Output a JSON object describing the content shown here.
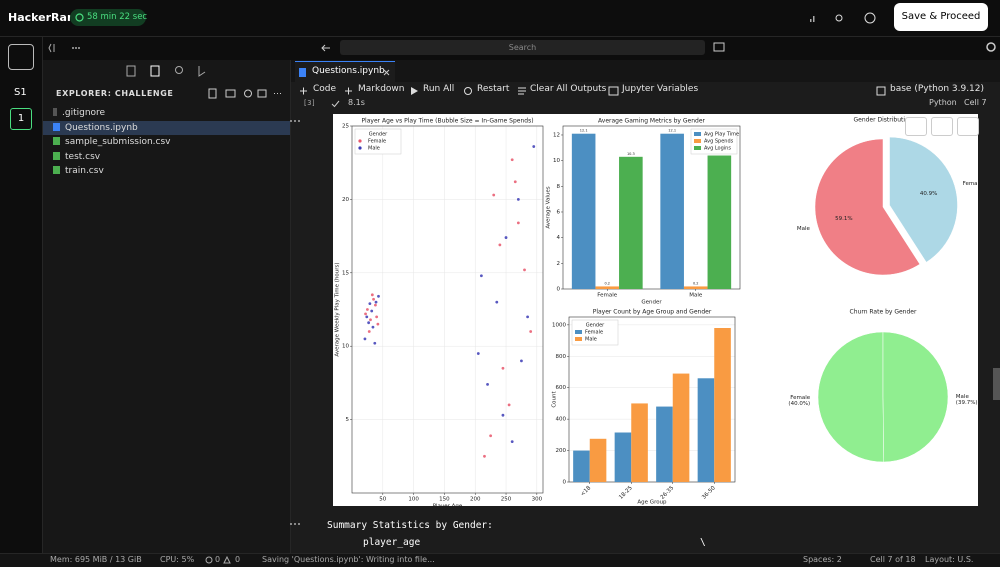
{
  "header": {
    "brand": "HackerRank",
    "timer": "58 min 22 sec",
    "save_button": "Save & Proceed"
  },
  "rail": {
    "section": "S1",
    "question": "1"
  },
  "search": "Search",
  "explorer": {
    "title": "EXPLORER: CHALLENGE",
    "files": [
      ".gitignore",
      "Questions.ipynb",
      "sample_submission.csv",
      "test.csv",
      "train.csv"
    ]
  },
  "tab": "Questions.ipynb",
  "toolbar": {
    "code": "Code",
    "markdown": "Markdown",
    "run_all": "Run All",
    "restart": "Restart",
    "clear": "Clear All Outputs",
    "variables": "Jupyter Variables",
    "kernel": "base (Python 3.9.12)"
  },
  "cell": {
    "execution_count": "[3]",
    "duration": "8.1s",
    "language": "Python",
    "position": "Cell 7"
  },
  "chart_data": [
    {
      "type": "scatter",
      "title": "Player Age vs Play Time (Bubble Size = In-Game Spends)",
      "xlabel": "Player Age",
      "ylabel": "Average Weekly Play Time (hours)",
      "xlim": [
        0,
        310
      ],
      "xticks": [
        50,
        100,
        150,
        200,
        250,
        300
      ],
      "ylim": [
        0,
        25
      ],
      "yticks": [
        5,
        10,
        15,
        20,
        25
      ],
      "grid": true,
      "legend_title": "Gender",
      "legend": "upper left",
      "series": [
        {
          "name": "Female",
          "color": "#e8566b",
          "x": [
            25,
            30,
            35,
            40,
            28,
            33,
            38,
            42,
            22,
            215,
            230,
            245,
            260,
            270,
            280,
            290,
            255,
            240,
            225,
            265
          ],
          "y": [
            12.5,
            11.8,
            13.2,
            12.0,
            11.0,
            13.5,
            12.8,
            11.5,
            12.2,
            2.5,
            20.3,
            8.5,
            22.7,
            18.4,
            15.2,
            11.0,
            6.0,
            16.9,
            3.9,
            21.2
          ]
        },
        {
          "name": "Male",
          "color": "#3b3bb5",
          "x": [
            24,
            29,
            34,
            39,
            27,
            32,
            37,
            43,
            21,
            205,
            220,
            235,
            250,
            260,
            275,
            285,
            295,
            245,
            210,
            270
          ],
          "y": [
            12.0,
            12.9,
            11.3,
            13.0,
            11.6,
            12.4,
            10.2,
            13.4,
            10.5,
            9.5,
            7.4,
            13.0,
            17.4,
            3.5,
            9.0,
            12.0,
            23.6,
            5.3,
            14.8,
            20.0
          ]
        }
      ]
    },
    {
      "type": "bar",
      "title": "Average Gaming Metrics by Gender",
      "xlabel": "Gender",
      "ylabel": "Average Values",
      "categories": [
        "Female",
        "Male"
      ],
      "ylim": [
        0,
        12.7
      ],
      "yticks": [
        0,
        2,
        4,
        6,
        8,
        10,
        12
      ],
      "legend": "upper right",
      "show_values": true,
      "series": [
        {
          "name": "Avg Play Time",
          "color": "#4c8fc2",
          "values": [
            12.1,
            12.1
          ]
        },
        {
          "name": "Avg Spends",
          "color": "#f99b42",
          "values": [
            0.2,
            0.2
          ]
        },
        {
          "name": "Avg Logins",
          "color": "#4caf50",
          "values": [
            10.3,
            10.4
          ]
        }
      ]
    },
    {
      "type": "pie",
      "title": "Gender Distribution",
      "labels": [
        "Male",
        "Female"
      ],
      "values": [
        59.1,
        40.9
      ],
      "value_labels": [
        "59.1%",
        "40.9%"
      ],
      "colors": [
        "#f07f86",
        "#add8e6"
      ],
      "explode": [
        0,
        0.1
      ],
      "startangle": 90,
      "percent_position": "inside"
    },
    {
      "type": "bar",
      "title": "Player Count by Age Group and Gender",
      "xlabel": "Age Group",
      "ylabel": "Count",
      "categories": [
        "<18",
        "18-25",
        "26-35",
        "36-50"
      ],
      "ylim": [
        0,
        1050
      ],
      "yticks": [
        0,
        200,
        400,
        600,
        800,
        1000
      ],
      "grid": true,
      "legend_title": "Gender",
      "legend": "upper left",
      "xtick_rotation": 45,
      "series": [
        {
          "name": "Female",
          "color": "#4c8fc2",
          "values": [
            200,
            315,
            480,
            660
          ]
        },
        {
          "name": "Male",
          "color": "#f99b42",
          "values": [
            275,
            500,
            690,
            980
          ]
        }
      ]
    },
    {
      "type": "pie",
      "title": "Churn Rate by Gender",
      "labels": [
        "Female",
        "Male"
      ],
      "values": [
        40.0,
        39.7
      ],
      "value_labels": [
        "(40.0%)",
        "(39.7%)"
      ],
      "colors": [
        "#90ee90",
        "#90ee90"
      ],
      "startangle": 90,
      "percent_position": "below_label"
    }
  ],
  "output": {
    "heading": "Summary Statistics by Gender:",
    "column": "player_age",
    "continuation": "\\"
  },
  "status": {
    "memory": "Mem: 695 MiB / 13 GiB",
    "cpu": "CPU: 5%",
    "errors": 0,
    "warnings": 0,
    "saving": "Saving 'Questions.ipynb': Writing into file...",
    "spaces": "Spaces: 2",
    "cell": "Cell 7 of 18",
    "layout": "Layout: U.S."
  }
}
